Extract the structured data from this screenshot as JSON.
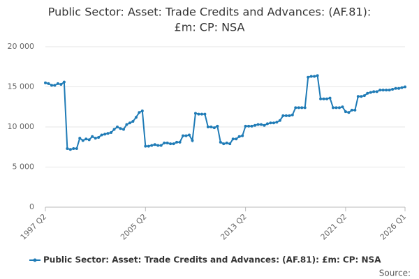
{
  "chart_data": {
    "type": "line",
    "title_lines": [
      "Public Sector: Asset: Trade Credits and Advances: (AF.81):",
      "£m: CP: NSA"
    ],
    "source": "Source:",
    "categories": [
      "1997 Q2",
      null,
      null,
      null,
      null,
      null,
      null,
      null,
      null,
      null,
      null,
      null,
      null,
      null,
      null,
      null,
      null,
      null,
      null,
      null,
      null,
      null,
      null,
      null,
      null,
      null,
      null,
      null,
      null,
      null,
      null,
      null,
      "2005 Q2",
      null,
      null,
      null,
      null,
      null,
      null,
      null,
      null,
      null,
      null,
      null,
      null,
      null,
      null,
      null,
      null,
      null,
      null,
      null,
      null,
      null,
      null,
      null,
      null,
      null,
      null,
      null,
      null,
      null,
      null,
      null,
      "2013 Q2",
      null,
      null,
      null,
      null,
      null,
      null,
      null,
      null,
      null,
      null,
      null,
      null,
      null,
      null,
      null,
      null,
      null,
      null,
      null,
      null,
      null,
      null,
      null,
      null,
      null,
      null,
      null,
      null,
      null,
      null,
      null,
      "2021 Q2",
      null,
      null,
      null,
      null,
      null,
      null,
      null,
      null,
      null,
      null,
      null,
      null,
      null,
      null,
      null,
      null,
      null,
      null,
      "2026 Q1"
    ],
    "series": [
      {
        "name": "Public Sector: Asset: Trade Credits and Advances: (AF.81): £m: CP: NSA",
        "color": "#1f7bb6",
        "values": [
          15500,
          15400,
          15200,
          15200,
          15400,
          15300,
          15600,
          7300,
          7200,
          7300,
          7300,
          8600,
          8300,
          8500,
          8400,
          8800,
          8600,
          8700,
          9000,
          9100,
          9200,
          9300,
          9700,
          10000,
          9800,
          9700,
          10300,
          10500,
          10700,
          11200,
          11800,
          12000,
          7600,
          7600,
          7700,
          7800,
          7700,
          7700,
          8000,
          8000,
          7900,
          7900,
          8100,
          8100,
          8900,
          8900,
          9000,
          8300,
          11700,
          11600,
          11600,
          11600,
          10000,
          10000,
          9900,
          10100,
          8100,
          7900,
          8000,
          7900,
          8500,
          8500,
          8800,
          8900,
          10100,
          10100,
          10100,
          10200,
          10300,
          10300,
          10200,
          10400,
          10500,
          10500,
          10600,
          10800,
          11400,
          11400,
          11400,
          11500,
          12400,
          12400,
          12400,
          12400,
          16200,
          16300,
          16300,
          16400,
          13500,
          13500,
          13500,
          13600,
          12400,
          12400,
          12400,
          12500,
          11900,
          11800,
          12100,
          12100,
          13800,
          13800,
          13900,
          14200,
          14300,
          14400,
          14400,
          14600,
          14600,
          14600,
          14600,
          14700,
          14800,
          14800,
          14900,
          15000
        ]
      }
    ],
    "ylim": [
      0,
      20000
    ],
    "yticks": [
      0,
      {
        "value": 5000,
        "label": "5 000"
      },
      {
        "value": 10000,
        "label": "10 000"
      },
      {
        "value": 15000,
        "label": "15 000"
      },
      {
        "value": 20000,
        "label": "20 000"
      }
    ],
    "grid": true
  }
}
